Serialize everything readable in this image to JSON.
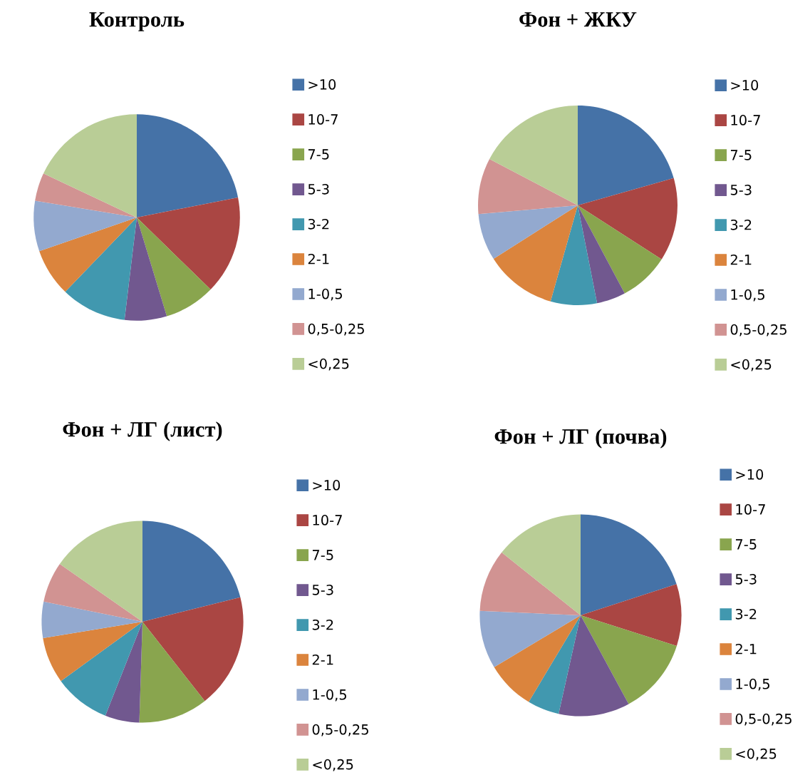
{
  "chart_data": [
    {
      "type": "pie",
      "title": "Контроль",
      "legend": "right",
      "categories": [
        ">10",
        "10-7",
        "7-5",
        "5-3",
        "3-2",
        "2-1",
        "1-0,5",
        "0,5-0,25",
        "<0,25"
      ],
      "values": [
        21.9,
        15.4,
        8.0,
        6.6,
        10.3,
        7.5,
        7.9,
        4.4,
        18.0
      ],
      "colors": [
        "#4572a7",
        "#aa4643",
        "#89a54e",
        "#71588f",
        "#4198af",
        "#db843d",
        "#93a9cf",
        "#d19392",
        "#b9cd96"
      ]
    },
    {
      "type": "pie",
      "title": "Фон + ЖКУ",
      "legend": "right",
      "categories": [
        ">10",
        "10-7",
        "7-5",
        "5-3",
        "3-2",
        "2-1",
        "1-0,5",
        "0,5-0,25",
        "<0,25"
      ],
      "values": [
        20.6,
        13.5,
        8.1,
        4.7,
        7.5,
        11.6,
        7.6,
        9.1,
        17.3
      ],
      "colors": [
        "#4572a7",
        "#aa4643",
        "#89a54e",
        "#71588f",
        "#4198af",
        "#db843d",
        "#93a9cf",
        "#d19392",
        "#b9cd96"
      ]
    },
    {
      "type": "pie",
      "title": "Фон + ЛГ (лист)",
      "legend": "right",
      "categories": [
        ">10",
        "10-7",
        "7-5",
        "5-3",
        "3-2",
        "2-1",
        "1-0,5",
        "0,5-0,25",
        "<0,25"
      ],
      "values": [
        21.1,
        18.3,
        11.1,
        5.5,
        9.0,
        7.4,
        5.8,
        6.5,
        15.3
      ],
      "colors": [
        "#4572a7",
        "#aa4643",
        "#89a54e",
        "#71588f",
        "#4198af",
        "#db843d",
        "#93a9cf",
        "#d19392",
        "#b9cd96"
      ]
    },
    {
      "type": "pie",
      "title": "Фон + ЛГ (почва)",
      "legend": "right",
      "categories": [
        ">10",
        "10-7",
        "7-5",
        "5-3",
        "3-2",
        "2-1",
        "1-0,5",
        "0,5-0,25",
        "<0,25"
      ],
      "values": [
        20.0,
        9.9,
        12.2,
        11.4,
        5.1,
        7.8,
        9.3,
        10.0,
        14.3
      ],
      "colors": [
        "#4572a7",
        "#aa4643",
        "#89a54e",
        "#71588f",
        "#4198af",
        "#db843d",
        "#93a9cf",
        "#d19392",
        "#b9cd96"
      ]
    }
  ]
}
